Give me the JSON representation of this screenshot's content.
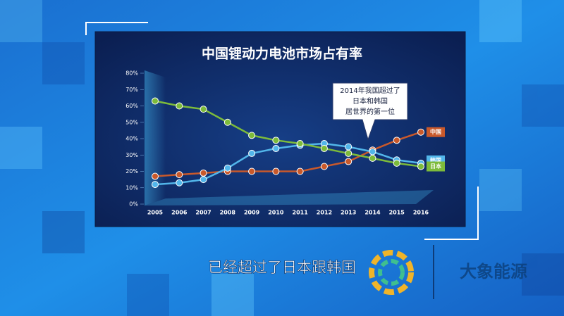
{
  "chart_data": {
    "type": "line",
    "title": "中国锂动力电池市场占有率",
    "categories": [
      "2005",
      "2006",
      "2007",
      "2008",
      "2009",
      "2010",
      "2011",
      "2012",
      "2013",
      "2014",
      "2015",
      "2016"
    ],
    "series": [
      {
        "name": "中国",
        "color": "#c9592b",
        "values": [
          17,
          18,
          19,
          20,
          20,
          20,
          20,
          23,
          26,
          33,
          39,
          44
        ]
      },
      {
        "name": "韩国",
        "color": "#52b6ea",
        "values": [
          12,
          13,
          15,
          22,
          31,
          34,
          36,
          37,
          35,
          32,
          27,
          25
        ]
      },
      {
        "name": "日本",
        "color": "#7dbb3b",
        "values": [
          63,
          60,
          58,
          50,
          42,
          39,
          37,
          34,
          31,
          28,
          25,
          23
        ]
      }
    ],
    "ylim": [
      0,
      80
    ],
    "yticks": [
      {
        "value": 0,
        "label": "0%"
      },
      {
        "value": 10,
        "label": "10%"
      },
      {
        "value": 20,
        "label": "20%"
      },
      {
        "value": 30,
        "label": "30%"
      },
      {
        "value": 40,
        "label": "40%"
      },
      {
        "value": 50,
        "label": "50%"
      },
      {
        "value": 60,
        "label": "60%"
      },
      {
        "value": 70,
        "label": "70%"
      },
      {
        "value": 80,
        "label": "80%"
      }
    ],
    "grid": false,
    "annotation": [
      "2014年我国超过了",
      "日本和韩国",
      "居世界的第一位"
    ]
  },
  "caption": "已经超过了日本跟韩国",
  "watermark": "大象能源"
}
